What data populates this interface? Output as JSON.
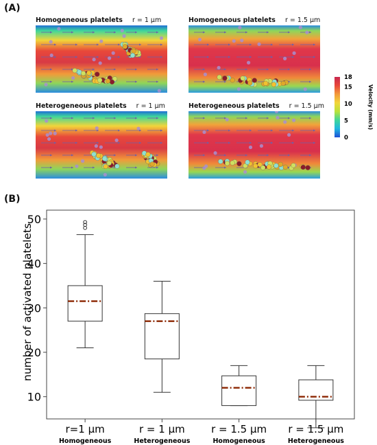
{
  "panel_a_label": "(A)",
  "panel_b_label": "(B)",
  "simulations": [
    {
      "title": "Homogeneous platelets",
      "radius_label": "r = 1 μm"
    },
    {
      "title": "Homogeneous platelets",
      "radius_label": "r = 1.5 μm"
    },
    {
      "title": "Heterogeneous platelets",
      "radius_label": "r = 1 μm"
    },
    {
      "title": "Heterogeneous platelets",
      "radius_label": "r = 1.5 μm"
    }
  ],
  "colorbar": {
    "label": "Velocity (mm/s)",
    "min": 0,
    "max": 18,
    "ticks": [
      0,
      5,
      10,
      15,
      18
    ],
    "colors": [
      "#1f4fd6",
      "#1fb7e0",
      "#3fd69a",
      "#b9e23a",
      "#f2d53a",
      "#f29a3a",
      "#e8483a",
      "#c8284f"
    ]
  },
  "chart_data": {
    "type": "box",
    "ylabel": "number of activated platelets",
    "ylim": [
      5,
      52
    ],
    "yticks": [
      10,
      20,
      30,
      40,
      50
    ],
    "categories": [
      {
        "label": "r=1 μm",
        "sublabel": "Homogeneous"
      },
      {
        "label": "r = 1 μm",
        "sublabel": "Heterogeneous"
      },
      {
        "label": "r = 1.5 μm",
        "sublabel": "Homogeneous"
      },
      {
        "label": "r = 1.5 μm",
        "sublabel": "Heterogeneous"
      }
    ],
    "boxes": [
      {
        "min": 21,
        "q1": 27,
        "median": 31.5,
        "q3": 35,
        "max": 46.5,
        "outliers": [
          48,
          48.7,
          49.3
        ]
      },
      {
        "min": 11,
        "q1": 18.5,
        "median": 27,
        "q3": 28.7,
        "max": 36,
        "outliers": []
      },
      {
        "min": 8,
        "q1": 8,
        "median": 12,
        "q3": 14.7,
        "max": 17,
        "outliers": []
      },
      {
        "min": 3,
        "q1": 9.2,
        "median": 10,
        "q3": 13.8,
        "max": 17,
        "outliers": []
      }
    ],
    "median_color": "#8b2500",
    "grid": false
  }
}
